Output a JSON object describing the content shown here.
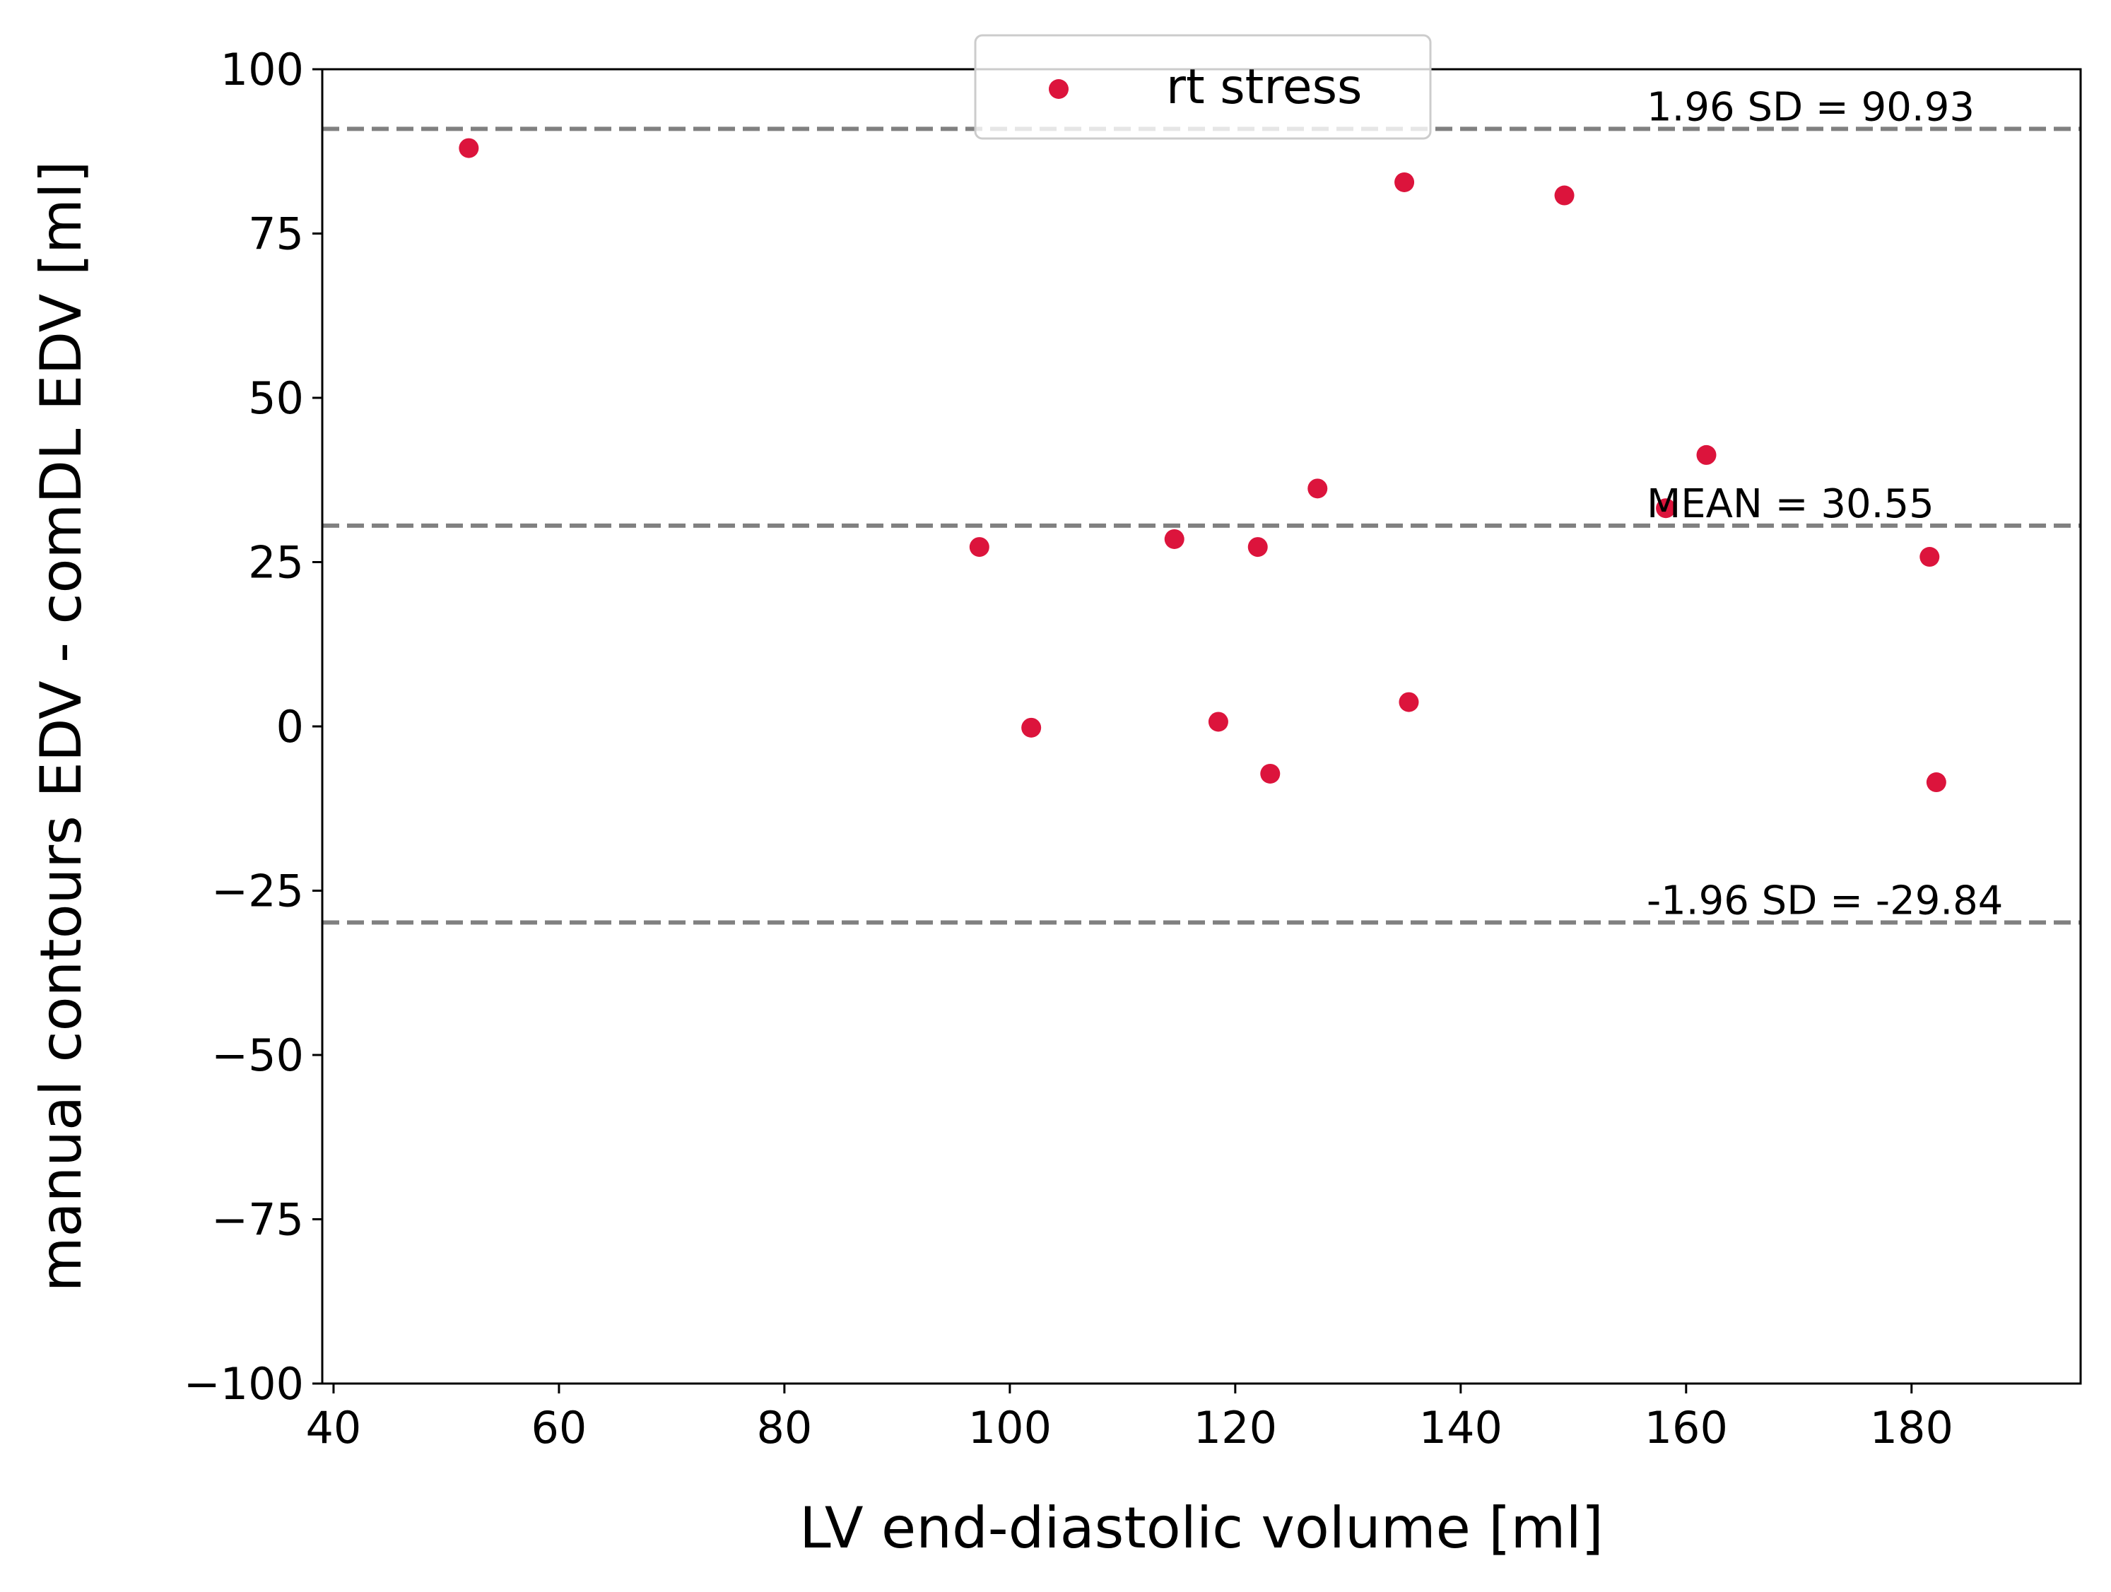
{
  "chart_data": {
    "type": "scatter",
    "xlabel": "LV end-diastolic volume [ml]",
    "ylabel": "manual contours EDV - comDL EDV [ml]",
    "xlim": [
      39,
      195
    ],
    "ylim": [
      -100,
      100
    ],
    "x_ticks": [
      40,
      60,
      80,
      100,
      120,
      140,
      160,
      180
    ],
    "x_tick_labels": [
      "40",
      "60",
      "80",
      "100",
      "120",
      "140",
      "160",
      "180"
    ],
    "y_ticks": [
      100,
      75,
      50,
      25,
      0,
      -25,
      -50,
      -75,
      -100
    ],
    "y_tick_labels": [
      "100",
      "75",
      "50",
      "25",
      "0",
      "−25",
      "−50",
      "−75",
      "−100"
    ],
    "grid": false,
    "legend_position": "upper-center",
    "series": [
      {
        "name": "rt stress",
        "color": "#dc143c",
        "points": [
          {
            "x": 52,
            "y": 88
          },
          {
            "x": 97.3,
            "y": 27.3
          },
          {
            "x": 101.9,
            "y": -0.2
          },
          {
            "x": 114.6,
            "y": 28.5
          },
          {
            "x": 118.5,
            "y": 0.7
          },
          {
            "x": 122,
            "y": 27.3
          },
          {
            "x": 123.1,
            "y": -7.2
          },
          {
            "x": 127.3,
            "y": 36.2
          },
          {
            "x": 135,
            "y": 82.8
          },
          {
            "x": 135.4,
            "y": 3.7
          },
          {
            "x": 149.2,
            "y": 80.8
          },
          {
            "x": 158.2,
            "y": 33.2
          },
          {
            "x": 161.8,
            "y": 41.3
          },
          {
            "x": 181.6,
            "y": 25.8
          },
          {
            "x": 182.2,
            "y": -8.5
          }
        ]
      }
    ],
    "reference_lines": [
      {
        "value": 90.93,
        "label": "1.96 SD = 90.93",
        "color": "#808080"
      },
      {
        "value": 30.55,
        "label": "MEAN = 30.55",
        "color": "#808080"
      },
      {
        "value": -29.84,
        "label": "-1.96 SD = -29.84",
        "color": "#808080"
      }
    ]
  }
}
